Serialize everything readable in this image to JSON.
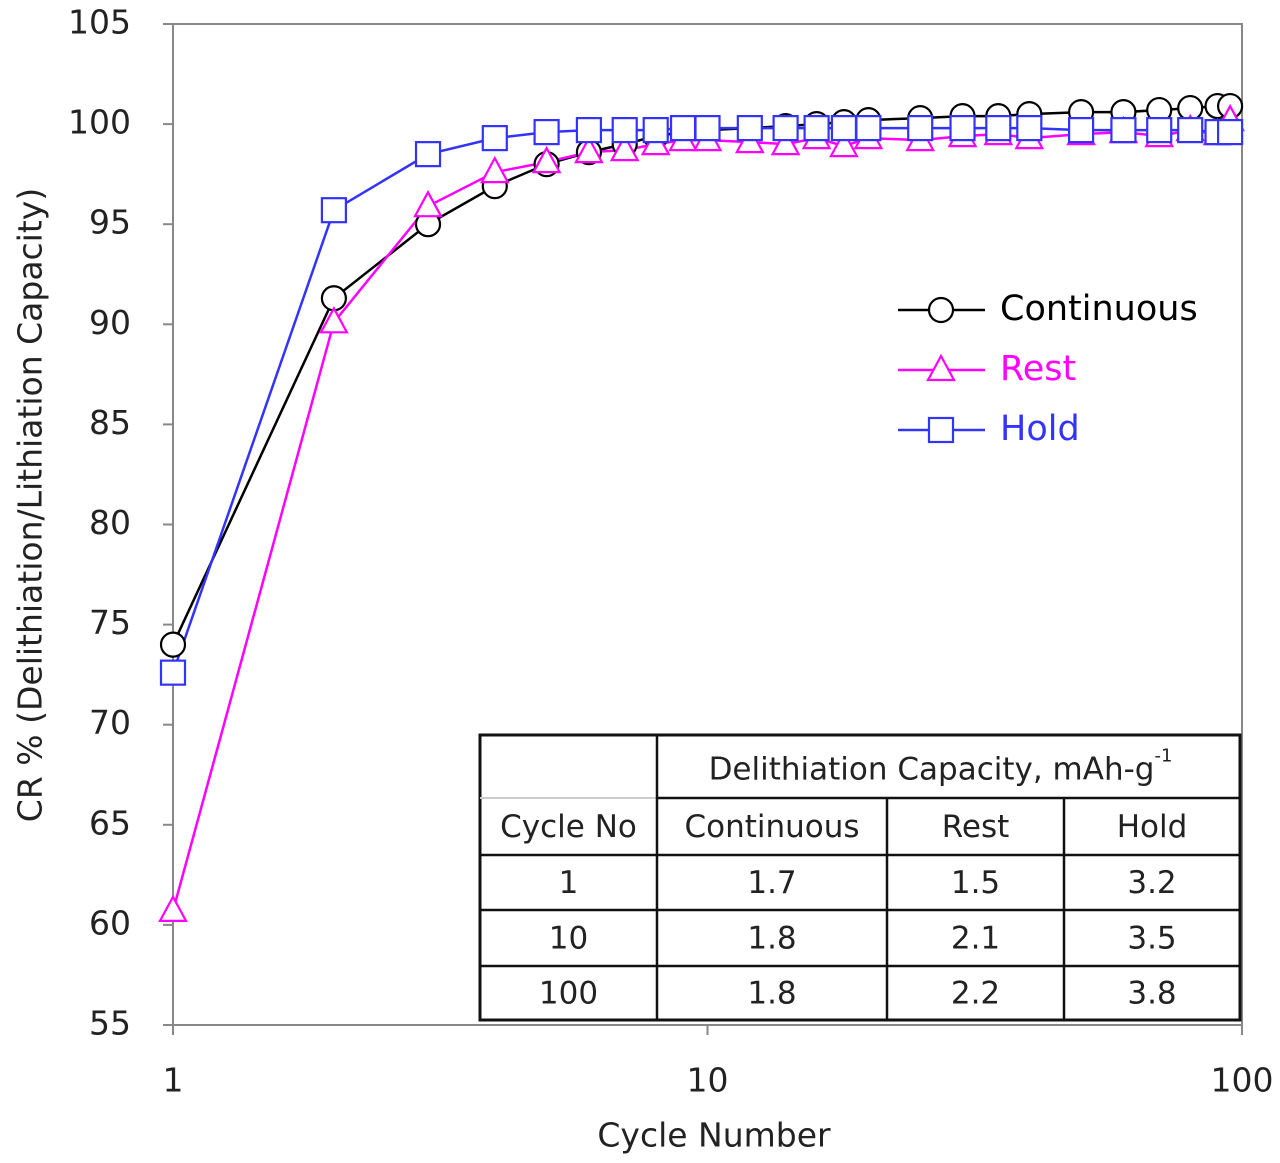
{
  "chart_data": {
    "type": "line",
    "ylabel": "CR % (Delithiation/Lithiation Capacity)",
    "xlabel": "Cycle Number",
    "log_x": true,
    "xlim": [
      1,
      100
    ],
    "xticks": [
      1,
      10,
      100
    ],
    "ylim": [
      55,
      105
    ],
    "yticks": [
      55,
      60,
      65,
      70,
      75,
      80,
      85,
      90,
      95,
      100,
      105
    ],
    "legend_position": "right",
    "x": [
      1,
      2,
      3,
      4,
      5,
      6,
      7,
      8,
      9,
      10,
      12,
      14,
      16,
      18,
      20,
      25,
      30,
      35,
      40,
      50,
      60,
      70,
      80,
      90,
      95
    ],
    "series": [
      {
        "name": "Continuous",
        "color": "#000000",
        "marker": "circle",
        "values": [
          74,
          91.3,
          95,
          96.9,
          98,
          98.6,
          99,
          99.4,
          99.6,
          99.7,
          99.8,
          99.9,
          100,
          100.1,
          100.2,
          100.3,
          100.4,
          100.4,
          100.5,
          100.6,
          100.6,
          100.7,
          100.8,
          100.9,
          100.9
        ]
      },
      {
        "name": "Rest",
        "color": "#ff00ff",
        "marker": "triangle",
        "values": [
          60.7,
          90.1,
          95.9,
          97.6,
          98.1,
          98.6,
          98.7,
          99,
          99.2,
          99.2,
          99.1,
          99,
          99.3,
          98.9,
          99.3,
          99.2,
          99.4,
          99.5,
          99.3,
          99.5,
          99.6,
          99.4,
          99.7,
          99.5,
          100.2
        ]
      },
      {
        "name": "Hold",
        "color": "#3333ff",
        "marker": "square",
        "values": [
          72.6,
          95.7,
          98.5,
          99.3,
          99.6,
          99.7,
          99.7,
          99.7,
          99.8,
          99.8,
          99.8,
          99.8,
          99.8,
          99.8,
          99.8,
          99.8,
          99.8,
          99.8,
          99.8,
          99.7,
          99.7,
          99.7,
          99.7,
          99.6,
          99.6
        ]
      }
    ],
    "table": {
      "title": "Delithiation Capacity, mAh-g",
      "title_superscript": "-1",
      "columns": [
        "Cycle No",
        "Continuous",
        "Rest",
        "Hold"
      ],
      "rows": [
        [
          1,
          1.7,
          1.5,
          3.2
        ],
        [
          10,
          1.8,
          2.1,
          3.5
        ],
        [
          100,
          1.8,
          2.2,
          3.8
        ]
      ]
    }
  }
}
